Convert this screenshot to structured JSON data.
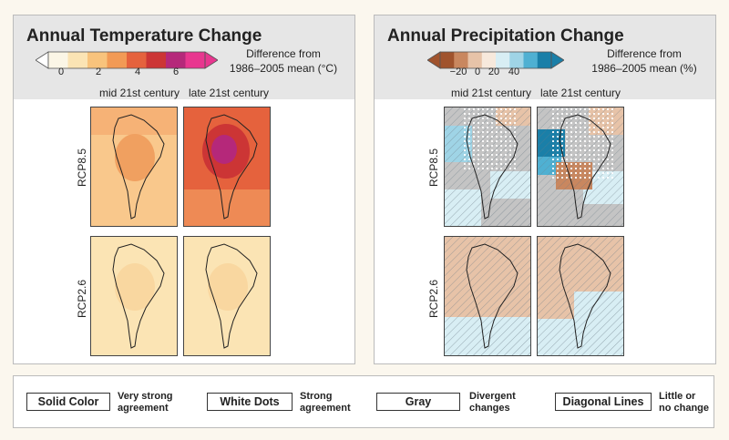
{
  "temperature": {
    "title": "Annual Temperature Change",
    "caption_line1": "Difference from",
    "caption_line2": "1986–2005 mean (°C)",
    "ticks": [
      "0",
      "2",
      "4",
      "6"
    ],
    "scale_colors": [
      "#fbf6e6",
      "#fbe4b4",
      "#f8c37c",
      "#f29a55",
      "#e5623d",
      "#cc3535",
      "#b5287a",
      "#e8368f"
    ],
    "columns": [
      "mid 21st century",
      "late 21st century"
    ],
    "rows": [
      "RCP8.5",
      "RCP2.6"
    ]
  },
  "precipitation": {
    "title": "Annual Precipitation Change",
    "caption_line1": "Difference from",
    "caption_line2": "1986–2005 mean (%)",
    "ticks": [
      "−20",
      "0",
      "20",
      "40"
    ],
    "scale_colors": [
      "#a0532d",
      "#c9875f",
      "#e7c3a8",
      "#f7e9dc",
      "#d8eef4",
      "#9fd4e6",
      "#4fb0d2",
      "#1a7fa8"
    ],
    "columns": [
      "mid 21st century",
      "late 21st century"
    ],
    "rows": [
      "RCP8.5",
      "RCP2.6"
    ]
  },
  "key": [
    {
      "box": "Solid Color",
      "desc1": "Very strong",
      "desc2": "agreement"
    },
    {
      "box": "White Dots",
      "desc1": "Strong",
      "desc2": "agreement"
    },
    {
      "box": "Gray",
      "desc1": "Divergent",
      "desc2": "changes"
    },
    {
      "box": "Diagonal Lines",
      "desc1": "Little or",
      "desc2": "no change"
    }
  ]
}
